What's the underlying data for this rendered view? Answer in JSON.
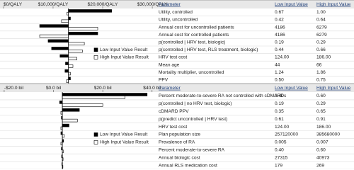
{
  "chart_data": [
    {
      "type": "tornado",
      "xticks": [
        {
          "value": 0,
          "label": "$0/QALY"
        },
        {
          "value": 10000,
          "label": "$10,000/QALY"
        },
        {
          "value": 20000,
          "label": "$20,000/QALY"
        },
        {
          "value": 30000,
          "label": "$30,000/QALY"
        }
      ],
      "xlim": [
        -700,
        30700
      ],
      "base": 13100,
      "columns": [
        "Parameter",
        "Low Input Value",
        "High Input Value"
      ],
      "categories": [
        "Utility, controlled",
        "Utility, uncontrolled",
        "Annual cost for uncontrolled patients",
        "Annual cost for controlled patients",
        "p(controlled | HRV test, biologic)",
        "p(controlled | HRV test, RLS treatment, biologic)",
        "HRV test cost",
        "Mean age",
        "Mortality multiplier, uncontrolled",
        "PPV"
      ],
      "low_input": [
        "0.67",
        "0.42",
        "4186",
        "4186",
        "0.19",
        "0.44",
        "124.00",
        "44",
        "1.24",
        "0.50"
      ],
      "high_input": [
        "1.00",
        "0.64",
        "6279",
        "6279",
        "0.29",
        "0.66",
        "186.00",
        "66",
        "1.86",
        "0.75"
      ],
      "series": [
        {
          "name": "Low Input Value Result",
          "color": "#000000",
          "values": [
            21800,
            13500,
            7300,
            19000,
            9000,
            9700,
            11400,
            12500,
            12400,
            13500
          ]
        },
        {
          "name": "High Input Value Result",
          "color": "#ffffff",
          "values": [
            12800,
            11700,
            19000,
            7300,
            16300,
            15900,
            14800,
            14000,
            13500,
            12700
          ]
        }
      ]
    },
    {
      "type": "tornado",
      "xticks": [
        {
          "value": -20,
          "label": "-$20.0 bil"
        },
        {
          "value": 0,
          "label": "$0.0 bil"
        },
        {
          "value": 20,
          "label": "$20.0 bil"
        },
        {
          "value": 40,
          "label": "$40.0 bil"
        }
      ],
      "xlim": [
        -21.7,
        41.5
      ],
      "base": 3.6,
      "columns": [
        "Parameter",
        "Low Input Value",
        "High Input Value"
      ],
      "categories": [
        "Percent moderate-to-severe RA not controlled with cDMARDs",
        "p(controlled | no HRV test, biologic)",
        "cDMARD PPV",
        "p(predict uncontrolled | HRV test)",
        "HRV test cost",
        "Plan population size",
        "Prevalence of RA",
        "Percent moderate-to-severe RA",
        "Annual biologic cost",
        "Annual RLS medication cost"
      ],
      "low_input": [
        "0.40",
        "0.19",
        "0.35",
        "0.61",
        "124.00",
        "257120000",
        "0.005",
        "0.40",
        "27315",
        "179"
      ],
      "high_input": [
        "0.60",
        "0.29",
        "0.65",
        "0.91",
        "186.00",
        "385680000",
        "0.007",
        "0.60",
        "40973",
        "269"
      ],
      "series": [
        {
          "name": "Low Input Value Result",
          "color": "#000000",
          "values": [
            38,
            2.5,
            10.5,
            3.2,
            6.3,
            3.0,
            4.1,
            3.2,
            3.3,
            3.4
          ]
        },
        {
          "name": "High Input Value Result",
          "color": "#ffffff",
          "values": [
            29,
            20,
            3.0,
            9.7,
            3.0,
            4.4,
            3.0,
            4.0,
            3.9,
            3.8
          ]
        }
      ]
    }
  ]
}
